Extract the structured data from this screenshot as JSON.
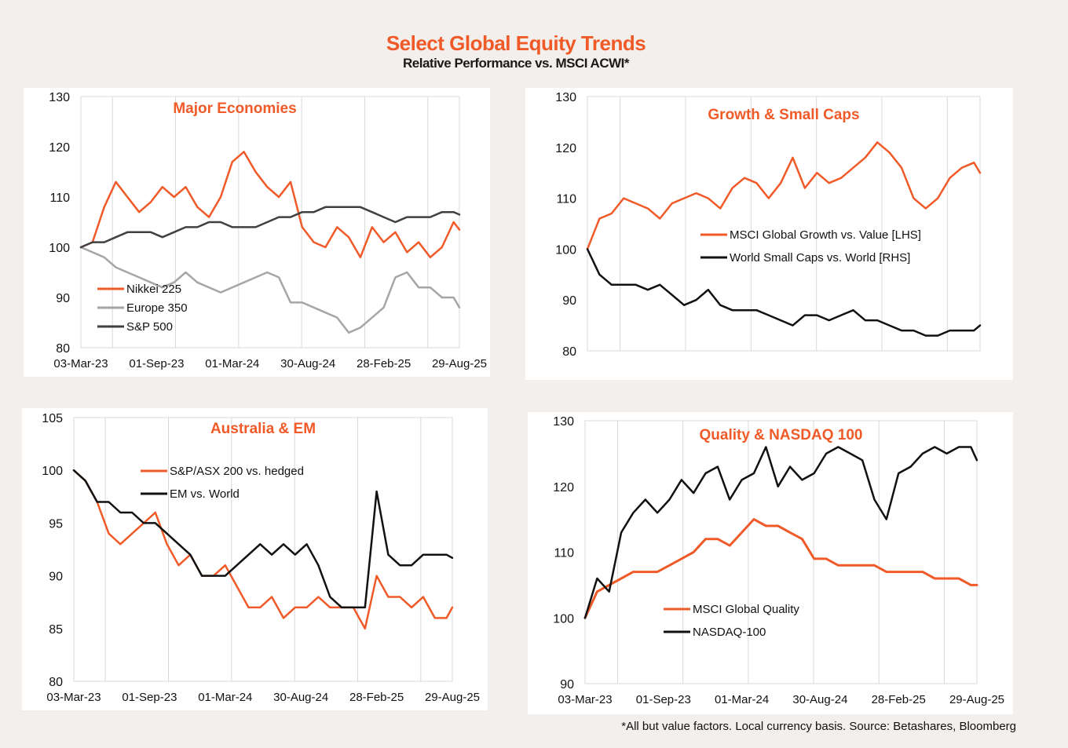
{
  "title": "Select Global Equity Trends",
  "subtitle": "Relative Performance vs. MSCI ACWI*",
  "footnote": "*All but value factors. Local currency basis.  Source: Betashares, Bloomberg",
  "chart_data": [
    {
      "type": "line",
      "title": "Major Economies",
      "ylim": [
        80,
        130
      ],
      "yticks": [
        80,
        90,
        100,
        110,
        120,
        130
      ],
      "xticks": [
        "03-Mar-23",
        "01-Sep-23",
        "01-Mar-24",
        "30-Aug-24",
        "28-Feb-25",
        "29-Aug-25"
      ],
      "x": [
        0,
        4,
        8,
        12,
        16,
        20,
        24,
        28,
        32,
        36,
        40,
        44,
        48,
        52,
        56,
        60,
        64,
        68,
        72,
        76,
        80,
        84,
        88,
        92,
        96,
        100,
        104,
        108,
        112,
        116,
        120,
        124,
        128,
        130
      ],
      "legend": "left",
      "series": [
        {
          "name": "Nikkei 225",
          "color": "#f05a28",
          "width": 2.5,
          "values": [
            100,
            101,
            108,
            113,
            110,
            107,
            109,
            112,
            110,
            112,
            108,
            106,
            110,
            117,
            119,
            115,
            112,
            110,
            113,
            104,
            101,
            100,
            104,
            102,
            98,
            104,
            101,
            103,
            99,
            101,
            98,
            100,
            105,
            103.5
          ]
        },
        {
          "name": "Europe 350",
          "color": "#a6a6a6",
          "width": 2.5,
          "values": [
            100,
            99,
            98,
            96,
            95,
            94,
            93,
            92,
            93,
            95,
            93,
            92,
            91,
            92,
            93,
            94,
            95,
            94,
            89,
            89,
            88,
            87,
            86,
            83,
            84,
            86,
            88,
            94,
            95,
            92,
            92,
            90,
            90,
            88
          ]
        },
        {
          "name": "S&P 500",
          "color": "#404040",
          "width": 2.5,
          "values": [
            100,
            101,
            101,
            102,
            103,
            103,
            103,
            102,
            103,
            104,
            104,
            105,
            105,
            104,
            104,
            104,
            105,
            106,
            106,
            107,
            107,
            108,
            108,
            108,
            108,
            107,
            106,
            105,
            106,
            106,
            106,
            107,
            107,
            106.5
          ]
        }
      ]
    },
    {
      "type": "line",
      "title": "Growth & Small Caps",
      "ylim": [
        80,
        130
      ],
      "yticks": [
        80,
        90,
        100,
        110,
        120,
        130
      ],
      "x": [
        0,
        4,
        8,
        12,
        16,
        20,
        24,
        28,
        32,
        36,
        40,
        44,
        48,
        52,
        56,
        60,
        64,
        68,
        72,
        76,
        80,
        84,
        88,
        92,
        96,
        100,
        104,
        108,
        112,
        116,
        120,
        124,
        128,
        130
      ],
      "legend": "right",
      "series": [
        {
          "name": "MSCI Global Growth vs. Value [LHS]",
          "color": "#f05a28",
          "width": 2.5,
          "values": [
            100,
            106,
            107,
            110,
            109,
            108,
            106,
            109,
            110,
            111,
            110,
            108,
            112,
            114,
            113,
            110,
            113,
            118,
            112,
            115,
            113,
            114,
            116,
            118,
            121,
            119,
            116,
            110,
            108,
            110,
            114,
            116,
            117,
            115
          ]
        },
        {
          "name": "World Small Caps vs. World [RHS]",
          "color": "#111111",
          "width": 2.5,
          "values": [
            100,
            95,
            93,
            93,
            93,
            92,
            93,
            91,
            89,
            90,
            92,
            89,
            88,
            88,
            88,
            87,
            86,
            85,
            87,
            87,
            86,
            87,
            88,
            86,
            86,
            85,
            84,
            84,
            83,
            83,
            84,
            84,
            84,
            85
          ]
        }
      ]
    },
    {
      "type": "line",
      "title": "Australia & EM",
      "ylim": [
        80,
        105
      ],
      "yticks": [
        80,
        85,
        90,
        95,
        100,
        105
      ],
      "xticks": [
        "03-Mar-23",
        "01-Sep-23",
        "01-Mar-24",
        "30-Aug-24",
        "28-Feb-25",
        "29-Aug-25"
      ],
      "x": [
        0,
        4,
        8,
        12,
        16,
        20,
        24,
        28,
        32,
        36,
        40,
        44,
        48,
        52,
        56,
        60,
        64,
        68,
        72,
        76,
        80,
        84,
        88,
        92,
        96,
        100,
        104,
        108,
        112,
        116,
        120,
        124,
        128,
        130
      ],
      "legend": "center",
      "series": [
        {
          "name": "S&P/ASX 200 vs. hedged",
          "color": "#f05a28",
          "width": 2.5,
          "values": [
            100,
            99,
            97,
            94,
            93,
            94,
            95,
            96,
            93,
            91,
            92,
            90,
            90,
            91,
            89,
            87,
            87,
            88,
            86,
            87,
            87,
            88,
            87,
            87,
            87,
            85,
            90,
            88,
            88,
            87,
            88,
            86,
            86,
            87
          ]
        },
        {
          "name": "EM vs. World",
          "color": "#111111",
          "width": 2.5,
          "values": [
            100,
            99,
            97,
            97,
            96,
            96,
            95,
            95,
            94,
            93,
            92,
            90,
            90,
            90,
            91,
            92,
            93,
            92,
            93,
            92,
            93,
            91,
            88,
            87,
            87,
            87,
            98,
            92,
            91,
            91,
            92,
            92,
            92,
            91.7
          ]
        }
      ]
    },
    {
      "type": "line",
      "title": "Quality & NASDAQ 100",
      "ylim": [
        90,
        130
      ],
      "yticks": [
        90,
        100,
        110,
        120,
        130
      ],
      "xticks": [
        "03-Mar-23",
        "01-Sep-23",
        "01-Mar-24",
        "30-Aug-24",
        "28-Feb-25",
        "29-Aug-25"
      ],
      "x": [
        0,
        4,
        8,
        12,
        16,
        20,
        24,
        28,
        32,
        36,
        40,
        44,
        48,
        52,
        56,
        60,
        64,
        68,
        72,
        76,
        80,
        84,
        88,
        92,
        96,
        100,
        104,
        108,
        112,
        116,
        120,
        124,
        128,
        130
      ],
      "legend": "left",
      "series": [
        {
          "name": "MSCI Global Quality",
          "color": "#f05a28",
          "width": 3,
          "values": [
            100,
            104,
            105,
            106,
            107,
            107,
            107,
            108,
            109,
            110,
            112,
            112,
            111,
            113,
            115,
            114,
            114,
            113,
            112,
            109,
            109,
            108,
            108,
            108,
            108,
            107,
            107,
            107,
            107,
            106,
            106,
            106,
            105,
            105
          ]
        },
        {
          "name": "NASDAQ-100",
          "color": "#111111",
          "width": 2.5,
          "values": [
            100,
            106,
            104,
            113,
            116,
            118,
            116,
            118,
            121,
            119,
            122,
            123,
            118,
            121,
            122,
            126,
            120,
            123,
            121,
            122,
            125,
            126,
            125,
            124,
            118,
            115,
            122,
            123,
            125,
            126,
            125,
            126,
            126,
            124
          ]
        }
      ]
    }
  ]
}
